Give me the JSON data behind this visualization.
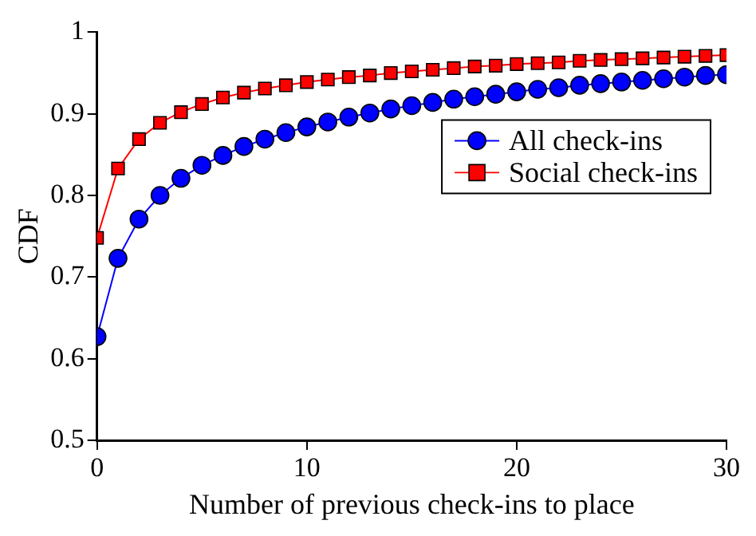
{
  "chart_data": {
    "type": "line",
    "xlabel": "Number of previous check-ins to place",
    "ylabel": "CDF",
    "x": [
      0,
      1,
      2,
      3,
      4,
      5,
      6,
      7,
      8,
      9,
      10,
      11,
      12,
      13,
      14,
      15,
      16,
      17,
      18,
      19,
      20,
      21,
      22,
      23,
      24,
      25,
      26,
      27,
      28,
      29,
      30
    ],
    "series": [
      {
        "name": "All check-ins",
        "color": "#0000ff",
        "marker": "circle",
        "values": [
          0.627,
          0.723,
          0.771,
          0.8,
          0.821,
          0.837,
          0.849,
          0.86,
          0.869,
          0.877,
          0.884,
          0.89,
          0.896,
          0.901,
          0.906,
          0.91,
          0.914,
          0.918,
          0.921,
          0.924,
          0.927,
          0.93,
          0.932,
          0.935,
          0.937,
          0.939,
          0.941,
          0.943,
          0.945,
          0.947,
          0.948
        ]
      },
      {
        "name": "Social check-ins",
        "color": "#ff0000",
        "marker": "square",
        "values": [
          0.748,
          0.833,
          0.869,
          0.889,
          0.902,
          0.912,
          0.92,
          0.926,
          0.931,
          0.935,
          0.939,
          0.942,
          0.945,
          0.947,
          0.95,
          0.952,
          0.954,
          0.956,
          0.958,
          0.959,
          0.961,
          0.962,
          0.963,
          0.965,
          0.966,
          0.967,
          0.968,
          0.969,
          0.97,
          0.971,
          0.972
        ]
      }
    ],
    "xlim": [
      0,
      30
    ],
    "xticks": [
      0,
      10,
      20,
      30
    ],
    "ylim": [
      0.5,
      1
    ],
    "yticks": [
      0.5,
      0.6,
      0.7,
      0.8,
      0.9,
      1
    ],
    "grid": false,
    "legend": "top right",
    "line_style": "solid"
  }
}
